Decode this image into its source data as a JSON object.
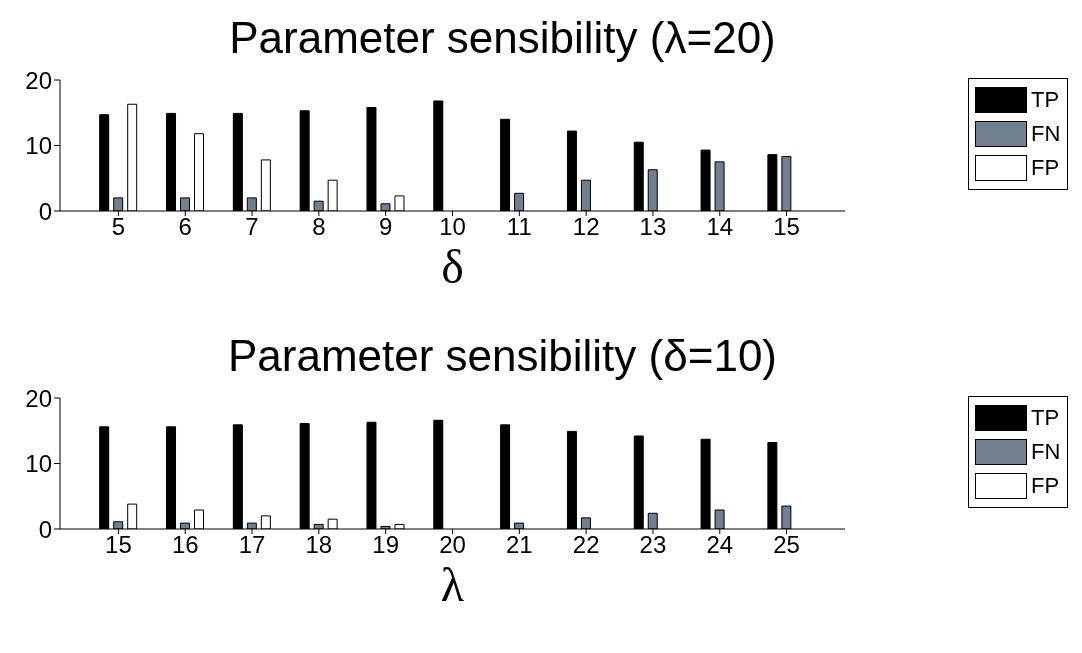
{
  "chart_data": [
    {
      "type": "bar",
      "title": "Parameter sensibility (λ=20)",
      "xlabel": "δ",
      "categories": [
        "5",
        "6",
        "7",
        "8",
        "9",
        "10",
        "11",
        "12",
        "13",
        "14",
        "15"
      ],
      "series": [
        {
          "name": "TP",
          "color": "#000000",
          "values": [
            14.7,
            14.9,
            14.9,
            15.3,
            15.8,
            16.8,
            14.0,
            12.2,
            10.5,
            9.3,
            8.6
          ]
        },
        {
          "name": "FN",
          "color": "#708090",
          "values": [
            2.0,
            2.0,
            2.0,
            1.5,
            1.1,
            0,
            2.7,
            4.7,
            6.3,
            7.5,
            8.3
          ]
        },
        {
          "name": "FP",
          "color": "#ffffff",
          "values": [
            16.3,
            11.8,
            7.8,
            4.7,
            2.3,
            0,
            0,
            0,
            0,
            0,
            0
          ]
        }
      ],
      "ylim": [
        0,
        20
      ],
      "yticks": [
        0,
        10,
        20
      ],
      "grid": false,
      "legend": "top right"
    },
    {
      "type": "bar",
      "title": "Parameter sensibility (δ=10)",
      "xlabel": "λ",
      "categories": [
        "15",
        "16",
        "17",
        "18",
        "19",
        "20",
        "21",
        "22",
        "23",
        "24",
        "25"
      ],
      "series": [
        {
          "name": "TP",
          "color": "#000000",
          "values": [
            15.6,
            15.6,
            15.9,
            16.1,
            16.3,
            16.6,
            15.9,
            14.9,
            14.2,
            13.7,
            13.2
          ]
        },
        {
          "name": "FN",
          "color": "#708090",
          "values": [
            1.1,
            0.9,
            0.9,
            0.7,
            0.4,
            0,
            0.9,
            1.7,
            2.4,
            2.9,
            3.5
          ]
        },
        {
          "name": "FP",
          "color": "#ffffff",
          "values": [
            3.8,
            2.9,
            2.0,
            1.5,
            0.7,
            0,
            0,
            0,
            0,
            0,
            0
          ]
        }
      ],
      "ylim": [
        0,
        20
      ],
      "yticks": [
        0,
        10,
        20
      ],
      "grid": false,
      "legend": "top right"
    }
  ]
}
